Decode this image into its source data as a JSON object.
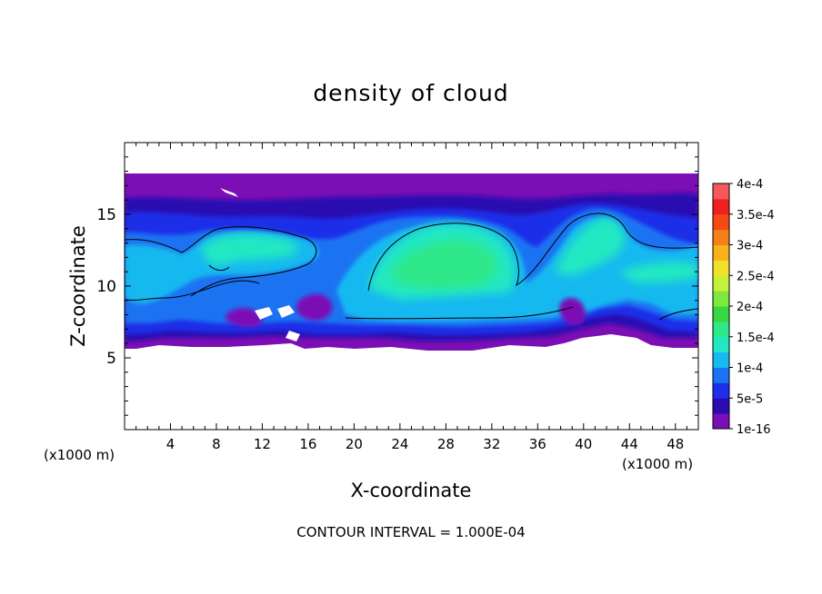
{
  "chart_data": {
    "type": "heatmap",
    "title": "density of cloud",
    "xlabel": "X-coordinate",
    "ylabel": "Z-coordinate",
    "x_unit": "(x1000 m)",
    "x_ticks": [
      4,
      8,
      12,
      16,
      20,
      24,
      28,
      32,
      36,
      40,
      44,
      48
    ],
    "y_ticks": [
      5,
      10,
      15
    ],
    "xlim": [
      0,
      50
    ],
    "ylim": [
      0,
      20
    ],
    "footnote": "CONTOUR INTERVAL = 1.000E-04",
    "colorbar": {
      "labels": [
        "1e-16",
        "5e-5",
        "1e-4",
        "1.5e-4",
        "2e-4",
        "2.5e-4",
        "3e-4",
        "3.5e-4",
        "4e-4"
      ],
      "colors": [
        "#7b0fb5",
        "#2a0cb0",
        "#1f2ee8",
        "#1a73f2",
        "#18b8f0",
        "#22e8c2",
        "#2ee88a",
        "#38d640",
        "#7ee83c",
        "#c7f03a",
        "#f2e02a",
        "#f7b21c",
        "#f57f18",
        "#f44a16",
        "#f02020",
        "#f45a5a"
      ]
    },
    "cloud": {
      "base_z": 6.0,
      "top_z": 17.5,
      "max_density": 0.00016,
      "core_regions": [
        {
          "x": [
            21,
            34
          ],
          "z": [
            7.8,
            14.0
          ]
        },
        {
          "x": [
            8,
            15
          ],
          "z": [
            11.8,
            13.5
          ]
        },
        {
          "x": [
            35,
            42
          ],
          "z": [
            10.5,
            15.5
          ]
        },
        {
          "x": [
            43,
            50
          ],
          "z": [
            9.5,
            12.0
          ]
        }
      ]
    }
  }
}
